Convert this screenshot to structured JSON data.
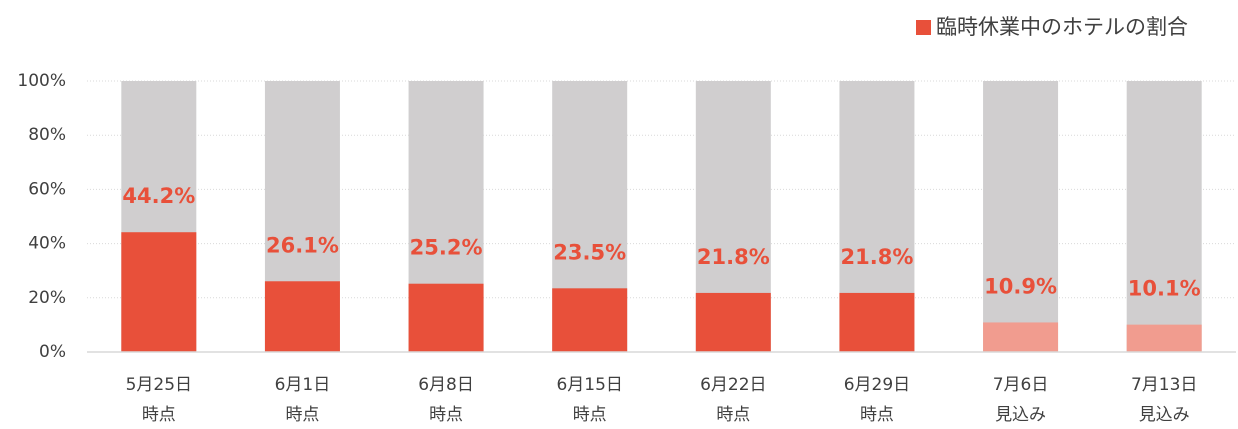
{
  "chart_data": {
    "type": "bar",
    "categories": [
      [
        "5月25日",
        "時点"
      ],
      [
        "6月1日",
        "時点"
      ],
      [
        "6月8日",
        "時点"
      ],
      [
        "6月15日",
        "時点"
      ],
      [
        "6月22日",
        "時点"
      ],
      [
        "6月29日",
        "時点"
      ],
      [
        "7月6日",
        "見込み"
      ],
      [
        "7月13日",
        "見込み"
      ]
    ],
    "series": [
      {
        "name": "臨時休業中のホテルの割合",
        "color": "#e8503a",
        "colors": [
          "#e8503a",
          "#e8503a",
          "#e8503a",
          "#e8503a",
          "#e8503a",
          "#e8503a",
          "#f19c8f",
          "#f19c8f"
        ],
        "values": [
          44.2,
          26.1,
          25.2,
          23.5,
          21.8,
          21.8,
          10.9,
          10.1
        ],
        "value_labels": [
          "44.2%",
          "26.1%",
          "25.2%",
          "23.5%",
          "21.8%",
          "21.8%",
          "10.9%",
          "10.1%"
        ]
      }
    ],
    "track_color": "#d0cecf",
    "ylim": [
      0,
      100
    ],
    "yticks": [
      {
        "value": 0,
        "label": "0%"
      },
      {
        "value": 20,
        "label": "20%"
      },
      {
        "value": 40,
        "label": "40%"
      },
      {
        "value": 60,
        "label": "60%"
      },
      {
        "value": 80,
        "label": "80%"
      },
      {
        "value": 100,
        "label": "100%"
      }
    ],
    "grid": true,
    "legend": "top-right"
  }
}
